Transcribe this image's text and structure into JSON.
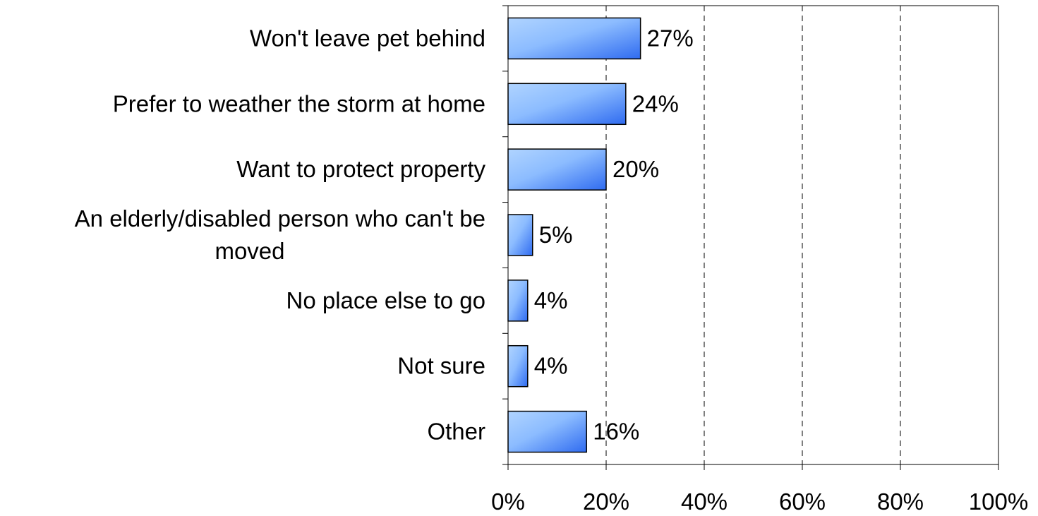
{
  "chart_data": {
    "type": "bar",
    "orientation": "horizontal",
    "categories": [
      "Won't leave pet behind",
      "Prefer to weather the storm at home",
      "Want to protect property",
      "An elderly/disabled person who can't be moved",
      "No place else to go",
      "Not sure",
      "Other"
    ],
    "category_lines": [
      [
        "Won't leave pet behind"
      ],
      [
        "Prefer to weather the storm at home"
      ],
      [
        "Want to protect property"
      ],
      [
        "An elderly/disabled person who can't be",
        "moved"
      ],
      [
        "No place else to go"
      ],
      [
        "Not sure"
      ],
      [
        "Other"
      ]
    ],
    "values": [
      27,
      24,
      20,
      5,
      4,
      4,
      16
    ],
    "data_labels": [
      "27%",
      "24%",
      "20%",
      "5%",
      "4%",
      "4%",
      "16%"
    ],
    "xlim": [
      0,
      100
    ],
    "x_ticks": [
      0,
      20,
      40,
      60,
      80,
      100
    ],
    "x_tick_labels": [
      "0%",
      "20%",
      "40%",
      "60%",
      "80%",
      "100%"
    ],
    "title": "",
    "xlabel": "",
    "ylabel": "",
    "grid": "vertical-dashed",
    "legend": "none",
    "bar_gradient": [
      "#b0d4ff",
      "#2f6bf0"
    ],
    "bar_outline": "#000000"
  }
}
